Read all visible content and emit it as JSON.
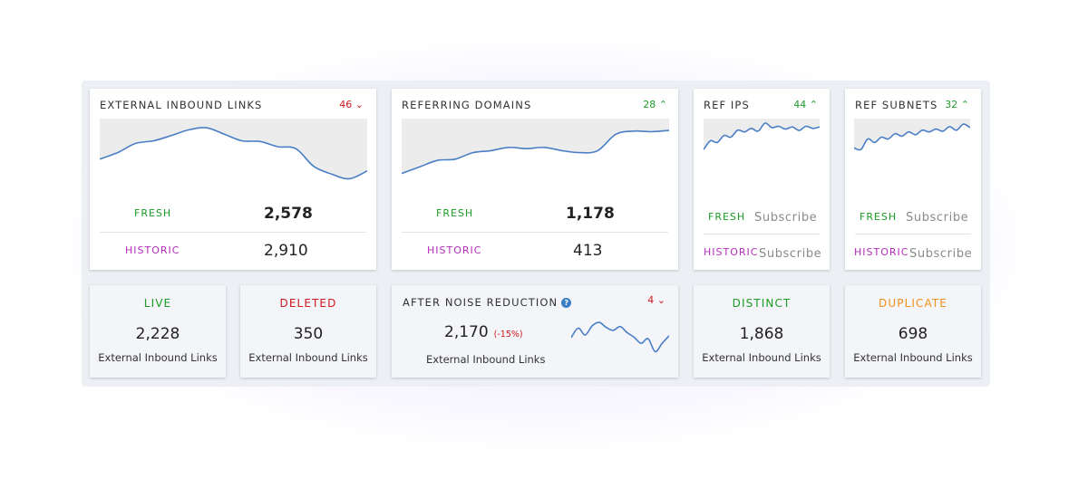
{
  "colors": {
    "fresh": "#1a9b25",
    "historic": "#b42dbb",
    "down": "#d0191e",
    "up": "#1e9c2a",
    "line": "#4a7ec6",
    "duplicate": "#f0901a"
  },
  "cards": {
    "external_inbound_links": {
      "title": "EXTERNAL INBOUND LINKS",
      "delta": "46",
      "delta_direction": "down",
      "fresh_label": "FRESH",
      "fresh_value": "2,578",
      "historic_label": "HISTORIC",
      "historic_value": "2,910"
    },
    "referring_domains": {
      "title": "REFERRING DOMAINS",
      "delta": "28",
      "delta_direction": "up",
      "fresh_label": "FRESH",
      "fresh_value": "1,178",
      "historic_label": "HISTORIC",
      "historic_value": "413"
    },
    "ref_ips": {
      "title": "REF IPS",
      "delta": "44",
      "delta_direction": "up",
      "fresh_label": "FRESH",
      "fresh_action": "Subscribe",
      "historic_label": "HISTORIC",
      "historic_action": "Subscribe"
    },
    "ref_subnets": {
      "title": "REF SUBNETS",
      "delta": "32",
      "delta_direction": "up",
      "fresh_label": "FRESH",
      "fresh_action": "Subscribe",
      "historic_label": "HISTORIC",
      "historic_action": "Subscribe"
    }
  },
  "metrics": {
    "live": {
      "title": "LIVE",
      "value": "2,228",
      "caption": "External Inbound Links"
    },
    "deleted": {
      "title": "DELETED",
      "value": "350",
      "caption": "External Inbound Links"
    },
    "noise": {
      "title": "AFTER NOISE REDUCTION",
      "help_icon": "question-circle-icon",
      "delta": "4",
      "delta_direction": "down",
      "value": "2,170",
      "change": "(-15%)",
      "caption": "External Inbound Links"
    },
    "distinct": {
      "title": "DISTINCT",
      "value": "1,868",
      "caption": "External Inbound Links"
    },
    "duplicate": {
      "title": "DUPLICATE",
      "value": "698",
      "caption": "External Inbound Links"
    }
  },
  "sparklines": {
    "external_inbound_links": [
      0.42,
      0.52,
      0.66,
      0.7,
      0.78,
      0.87,
      0.9,
      0.8,
      0.7,
      0.69,
      0.61,
      0.58,
      0.31,
      0.19,
      0.12,
      0.24
    ],
    "referring_domains": [
      0.2,
      0.3,
      0.4,
      0.42,
      0.52,
      0.55,
      0.6,
      0.58,
      0.6,
      0.55,
      0.52,
      0.55,
      0.8,
      0.85,
      0.84,
      0.86
    ],
    "ref_ips": [
      0.2,
      0.45,
      0.4,
      0.6,
      0.55,
      0.75,
      0.7,
      0.8,
      0.72,
      0.95,
      0.82,
      0.86,
      0.78,
      0.84,
      0.74,
      0.86,
      0.8,
      0.84
    ],
    "ref_subnets": [
      0.25,
      0.2,
      0.5,
      0.4,
      0.55,
      0.5,
      0.65,
      0.58,
      0.7,
      0.62,
      0.75,
      0.7,
      0.78,
      0.72,
      0.85,
      0.75,
      0.92,
      0.82
    ],
    "noise": [
      0.55,
      0.8,
      0.62,
      0.86,
      0.95,
      0.82,
      0.74,
      0.84,
      0.68,
      0.56,
      0.4,
      0.52,
      0.18,
      0.4,
      0.6
    ]
  }
}
